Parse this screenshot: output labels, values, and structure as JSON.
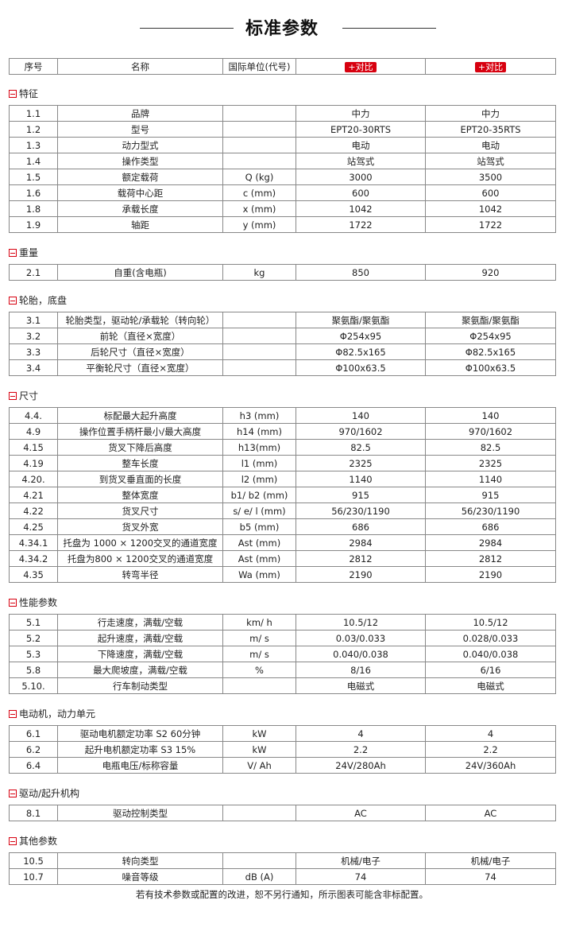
{
  "title": "标准参数",
  "header": {
    "no": "序号",
    "name": "名称",
    "unit": "国际单位(代号)",
    "compare1": "+对比",
    "compare2": "+对比"
  },
  "sections": [
    {
      "title": "特征",
      "rows": [
        [
          "1.1",
          "品牌",
          "",
          "中力",
          "中力"
        ],
        [
          "1.2",
          "型号",
          "",
          "EPT20-30RTS",
          "EPT20-35RTS"
        ],
        [
          "1.3",
          "动力型式",
          "",
          "电动",
          "电动"
        ],
        [
          "1.4",
          "操作类型",
          "",
          "站驾式",
          "站驾式"
        ],
        [
          "1.5",
          "额定载荷",
          "Q (kg)",
          "3000",
          "3500"
        ],
        [
          "1.6",
          "载荷中心距",
          "c (mm)",
          "600",
          "600"
        ],
        [
          "1.8",
          "承载长度",
          "x (mm)",
          "1042",
          "1042"
        ],
        [
          "1.9",
          "轴距",
          "y (mm)",
          "1722",
          "1722"
        ]
      ]
    },
    {
      "title": "重量",
      "rows": [
        [
          "2.1",
          "自重(含电瓶)",
          "kg",
          "850",
          "920"
        ]
      ]
    },
    {
      "title": "轮胎，底盘",
      "rows": [
        [
          "3.1",
          "轮胎类型，驱动轮/承载轮（转向轮）",
          "",
          "聚氨酯/聚氨酯",
          "聚氨酯/聚氨酯"
        ],
        [
          "3.2",
          "前轮（直径×宽度）",
          "",
          "Φ254x95",
          "Φ254x95"
        ],
        [
          "3.3",
          "后轮尺寸（直径×宽度）",
          "",
          "Φ82.5x165",
          "Φ82.5x165"
        ],
        [
          "3.4",
          "平衡轮尺寸（直径×宽度）",
          "",
          "Φ100x63.5",
          "Φ100x63.5"
        ]
      ]
    },
    {
      "title": "尺寸",
      "rows": [
        [
          "4.4.",
          "标配最大起升高度",
          "h3 (mm)",
          "140",
          "140"
        ],
        [
          "4.9",
          "操作位置手柄杆最小/最大高度",
          "h14 (mm)",
          "970/1602",
          "970/1602"
        ],
        [
          "4.15",
          "货叉下降后高度",
          "h13(mm)",
          "82.5",
          "82.5"
        ],
        [
          "4.19",
          "整车长度",
          "l1 (mm)",
          "2325",
          "2325"
        ],
        [
          "4.20.",
          "到货叉垂直面的长度",
          "l2 (mm)",
          "1140",
          "1140"
        ],
        [
          "4.21",
          "整体宽度",
          "b1/ b2 (mm)",
          "915",
          "915"
        ],
        [
          "4.22",
          "货叉尺寸",
          "s/ e/ l (mm)",
          "56/230/1190",
          "56/230/1190"
        ],
        [
          "4.25",
          "货叉外宽",
          "b5 (mm)",
          "686",
          "686"
        ],
        [
          "4.34.1",
          "托盘为 1000 × 1200交叉的通道宽度",
          "Ast (mm)",
          "2984",
          "2984"
        ],
        [
          "4.34.2",
          "托盘为800 × 1200交叉的通道宽度",
          "Ast (mm)",
          "2812",
          "2812"
        ],
        [
          "4.35",
          "转弯半径",
          "Wa (mm)",
          "2190",
          "2190"
        ]
      ]
    },
    {
      "title": "性能参数",
      "rows": [
        [
          "5.1",
          "行走速度，满载/空载",
          "km/ h",
          "10.5/12",
          "10.5/12"
        ],
        [
          "5.2",
          "起升速度，满载/空载",
          "m/ s",
          "0.03/0.033",
          "0.028/0.033"
        ],
        [
          "5.3",
          "下降速度，满载/空载",
          "m/ s",
          "0.040/0.038",
          "0.040/0.038"
        ],
        [
          "5.8",
          "最大爬坡度，满载/空载",
          "%",
          "8/16",
          "6/16"
        ],
        [
          "5.10.",
          "行车制动类型",
          "",
          "电磁式",
          "电磁式"
        ]
      ]
    },
    {
      "title": "电动机，动力单元",
      "rows": [
        [
          "6.1",
          "驱动电机额定功率 S2 60分钟",
          "kW",
          "4",
          "4"
        ],
        [
          "6.2",
          "起升电机额定功率 S3 15%",
          "kW",
          "2.2",
          "2.2"
        ],
        [
          "6.4",
          "电瓶电压/标称容量",
          "V/ Ah",
          "24V/280Ah",
          "24V/360Ah"
        ]
      ]
    },
    {
      "title": "驱动/起升机构",
      "rows": [
        [
          "8.1",
          "驱动控制类型",
          "",
          "AC",
          "AC"
        ]
      ]
    },
    {
      "title": "其他参数",
      "rows": [
        [
          "10.5",
          "转向类型",
          "",
          "机械/电子",
          "机械/电子"
        ],
        [
          "10.7",
          "噪音等级",
          "dB (A)",
          "74",
          "74"
        ]
      ]
    }
  ],
  "footer": "若有技术参数或配置的改进，恕不另行通知，所示图表可能含非标配置。",
  "colors": {
    "accent": "#d7000f",
    "border": "#888888"
  }
}
